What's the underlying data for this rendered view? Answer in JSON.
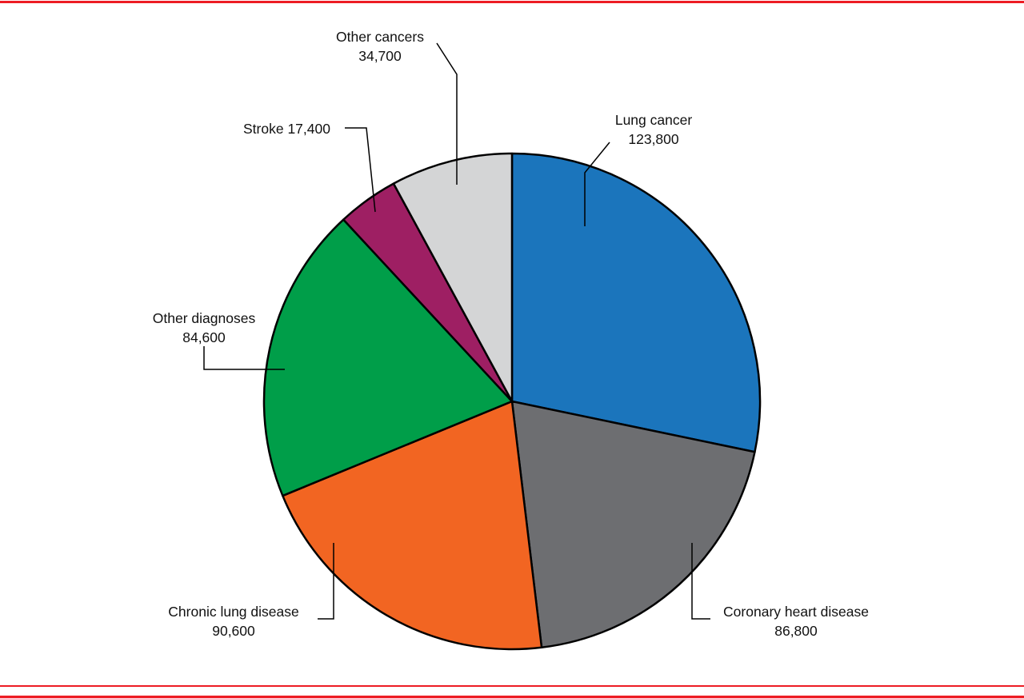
{
  "chart_data": {
    "type": "pie",
    "title": "",
    "direction": "clockwise",
    "start_angle_deg": 0,
    "stroke_color": "#000000",
    "frame_color": "#ED1C24",
    "legend_position": "none",
    "slices": [
      {
        "label": "Lung cancer",
        "value": 123800,
        "value_text": "123,800",
        "color": "#1B75BC"
      },
      {
        "label": "Coronary heart disease",
        "value": 86800,
        "value_text": "86,800",
        "color": "#6D6E71"
      },
      {
        "label": "Chronic lung disease",
        "value": 90600,
        "value_text": "90,600",
        "color": "#F26522"
      },
      {
        "label": "Other diagnoses",
        "value": 84600,
        "value_text": "84,600",
        "color": "#009E49"
      },
      {
        "label": "Stroke",
        "value": 17400,
        "value_text": "17,400",
        "color": "#9E1F63"
      },
      {
        "label": "Other cancers",
        "value": 34700,
        "value_text": "34,700",
        "color": "#D4D5D6"
      }
    ]
  }
}
